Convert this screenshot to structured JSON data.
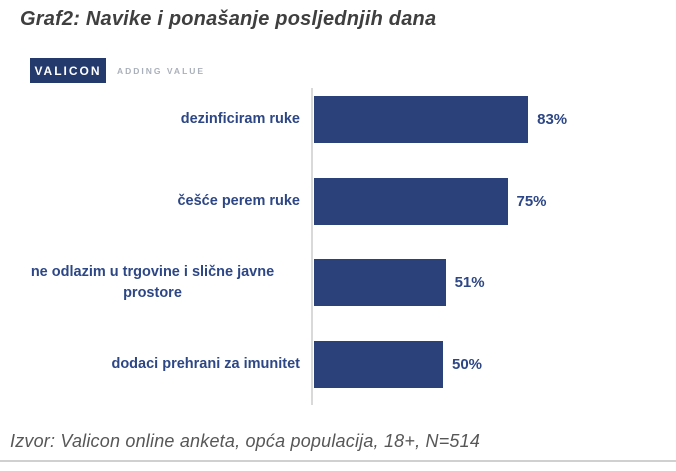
{
  "title": "Graf2: Navike i ponašanje posljednjih dana",
  "logo": {
    "brand": "VALICON",
    "tagline": "ADDING VALUE"
  },
  "source": "Izvor: Valicon online anketa, opća populacija, 18+, N=514",
  "colors": {
    "bar": "#2a4179",
    "logo_bg": "#243a6d",
    "label_text": "#2d4786",
    "title_text": "#3f3f3f",
    "source_text": "#575757",
    "axis_line": "#d9d9d9",
    "divider": "#d0d0d0"
  },
  "chart_data": {
    "type": "bar",
    "orientation": "horizontal",
    "title": "Graf2: Navike i ponašanje posljednjih dana",
    "categories": [
      "dezinficiram ruke",
      "češće perem ruke",
      "ne odlazim u trgovine i slične javne prostore",
      "dodaci prehrani za imunitet"
    ],
    "values": [
      83,
      75,
      51,
      50
    ],
    "value_labels": [
      "83%",
      "75%",
      "51%",
      "50%"
    ],
    "xlabel": "",
    "ylabel": "",
    "xlim": [
      0,
      100
    ],
    "grid": false,
    "legend": false,
    "data_labels": "outside-end"
  }
}
